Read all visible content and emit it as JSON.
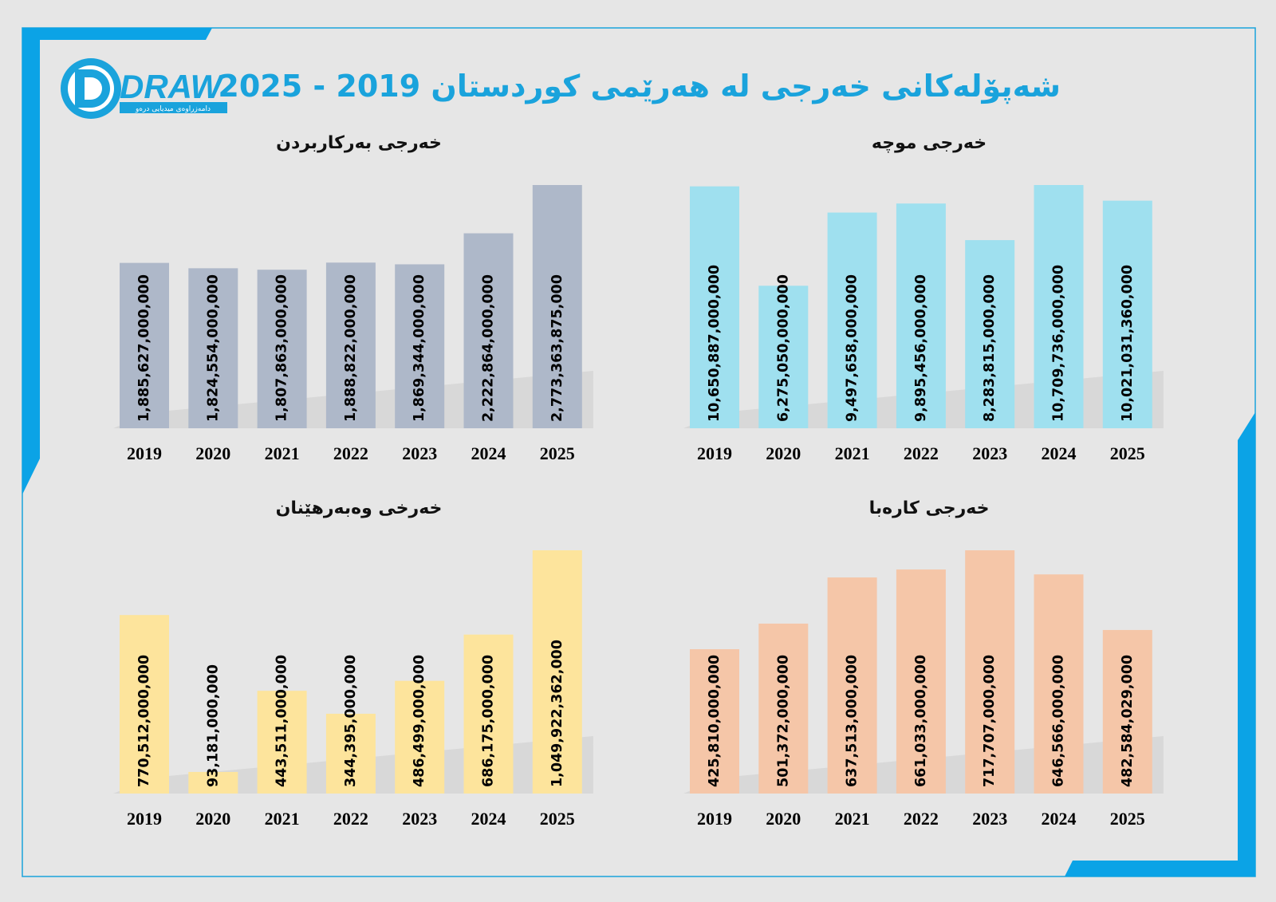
{
  "title": "شەپۆلەكانی خەرجی لە هەرێمی كوردستان 2019 - 2025",
  "logo": {
    "wordmark": "DRAW",
    "tagline": "دامەزراوەی میدیایی درەو"
  },
  "colors": {
    "accent": "#1aa3dc",
    "operational": "#aeb8c9",
    "salary": "#9fe0ef",
    "investment": "#fde49c",
    "electricity": "#f5c6a8"
  },
  "chart_data": [
    {
      "id": "operational",
      "type": "bar",
      "title": "خەرجی بەركاربردن",
      "categories": [
        "2019",
        "2020",
        "2021",
        "2022",
        "2023",
        "2024",
        "2025"
      ],
      "values": [
        1885627000000,
        1824554000000,
        1807863000000,
        1888822000000,
        1869344000000,
        2222864000000,
        2773363875000
      ],
      "labels": [
        "1,885,627,000,000",
        "1,824,554,000,000",
        "1,807,863,000,000",
        "1,888,822,000,000",
        "1,869,344,000,000",
        "2,222,864,000,000",
        "2,773,363,875,000"
      ],
      "ylim": [
        0,
        2773363875000
      ],
      "color": "#aeb8c9"
    },
    {
      "id": "salary",
      "type": "bar",
      "title": "خەرجی موچە",
      "categories": [
        "2019",
        "2020",
        "2021",
        "2022",
        "2023",
        "2024",
        "2025"
      ],
      "values": [
        10650887000000,
        6275050000000,
        9497658000000,
        9895456000000,
        8283815000000,
        10709736000000,
        10021031360000
      ],
      "labels": [
        "10,650,887,000,000",
        "6,275,050,000,000",
        "9,497,658,000,000",
        "9,895,456,000,000",
        "8,283,815,000,000",
        "10,709,736,000,000",
        "10,021,031,360,000"
      ],
      "ylim": [
        0,
        10709736000000
      ],
      "color": "#9fe0ef"
    },
    {
      "id": "investment",
      "type": "bar",
      "title": "خەرخی وەبەرهێنان",
      "categories": [
        "2019",
        "2020",
        "2021",
        "2022",
        "2023",
        "2024",
        "2025"
      ],
      "values": [
        770512000000,
        93181000000,
        443511000000,
        344395000000,
        486499000000,
        686175000000,
        1049922362000
      ],
      "labels": [
        "770,512,000,000",
        "93,181,000,000",
        "443,511,000,000",
        "344,395,000,000",
        "486,499,000,000",
        "686,175,000,000",
        "1,049,922,362,000"
      ],
      "ylim": [
        0,
        1049922362000
      ],
      "color": "#fde49c"
    },
    {
      "id": "electricity",
      "type": "bar",
      "title": "خەرجی كارەبا",
      "categories": [
        "2019",
        "2020",
        "2021",
        "2022",
        "2023",
        "2024",
        "2025"
      ],
      "values": [
        425810000000,
        501372000000,
        637513000000,
        661033000000,
        717707000000,
        646566000000,
        482584029000
      ],
      "labels": [
        "425,810,000,000",
        "501,372,000,000",
        "637,513,000,000",
        "661,033,000,000",
        "717,707,000,000",
        "646,566,000,000",
        "482,584,029,000"
      ],
      "ylim": [
        0,
        717707000000
      ],
      "color": "#f5c6a8"
    }
  ]
}
